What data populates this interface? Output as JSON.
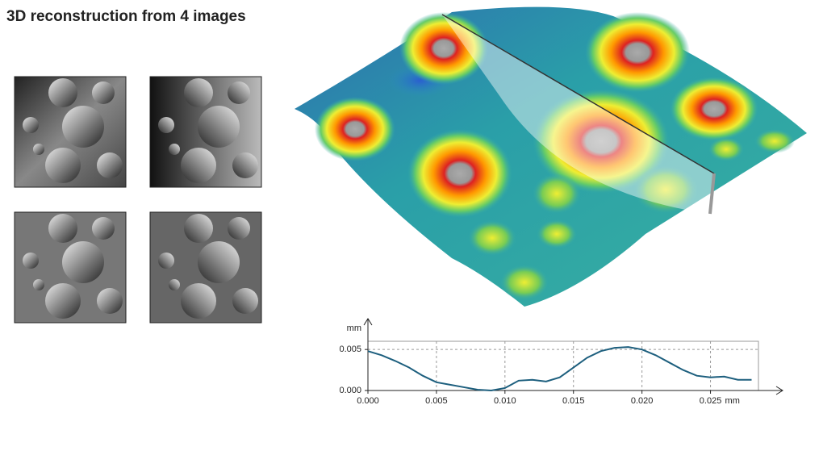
{
  "title": "3D reconstruction from 4 images",
  "chart_data": {
    "type": "line",
    "ylabel": "mm",
    "xlabel": "mm",
    "x": [
      0,
      0.001,
      0.002,
      0.003,
      0.004,
      0.005,
      0.006,
      0.007,
      0.008,
      0.009,
      0.01,
      0.011,
      0.012,
      0.013,
      0.014,
      0.015,
      0.016,
      0.017,
      0.018,
      0.019,
      0.02,
      0.021,
      0.022,
      0.023,
      0.024,
      0.025,
      0.026,
      0.027,
      0.028
    ],
    "values": [
      0.0048,
      0.0043,
      0.0036,
      0.0028,
      0.0018,
      0.001,
      0.0007,
      0.0004,
      0.0001,
      0.0,
      0.0003,
      0.0012,
      0.0013,
      0.0011,
      0.0016,
      0.0028,
      0.004,
      0.0048,
      0.0052,
      0.0053,
      0.005,
      0.0043,
      0.0034,
      0.0025,
      0.0018,
      0.0016,
      0.0017,
      0.0013,
      0.0013
    ],
    "color": "#1d5f7e",
    "xlim": [
      0,
      0.0285
    ],
    "ylim": [
      0,
      0.006
    ],
    "xticks": [
      {
        "value": 0,
        "label": "0.000"
      },
      {
        "value": 0.005,
        "label": "0.005"
      },
      {
        "value": 0.01,
        "label": "0.010"
      },
      {
        "value": 0.015,
        "label": "0.015"
      },
      {
        "value": 0.02,
        "label": "0.020"
      },
      {
        "value": 0.025,
        "label": "0.025"
      }
    ],
    "yticks": [
      {
        "value": 0,
        "label": "0.000"
      },
      {
        "value": 0.005,
        "label": "0.005"
      }
    ],
    "grid": true
  }
}
